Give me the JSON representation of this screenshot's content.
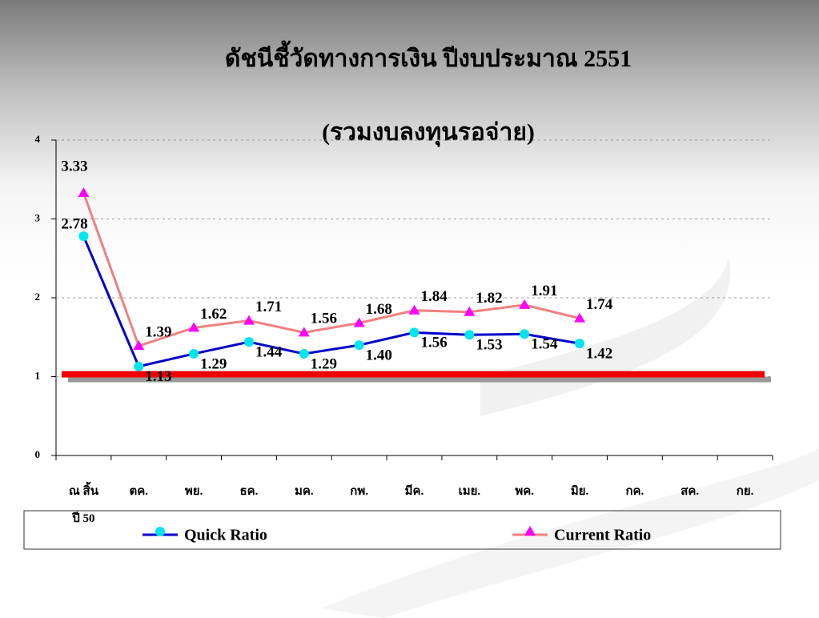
{
  "chart_data": {
    "type": "line",
    "title": "ดัชนีชี้วัดทางการเงิน ปีงบประมาณ 2551",
    "subtitle": "(รวมงบลงทุนรอจ่าย)",
    "categories": [
      "ณ สิ้น\nปี 50",
      "ตค.",
      "พย.",
      "ธค.",
      "มค.",
      "กพ.",
      "มีค.",
      "เมย.",
      "พค.",
      "มิย.",
      "กค.",
      "สค.",
      "กย."
    ],
    "series": [
      {
        "name": "Quick Ratio",
        "color": "#0000cc",
        "marker_color": "#00e5ee",
        "marker": "circle",
        "values": [
          2.78,
          1.13,
          1.29,
          1.44,
          1.29,
          1.4,
          1.56,
          1.53,
          1.54,
          1.42,
          null,
          null,
          null
        ],
        "value_labels": [
          "2.78",
          "1.13",
          "1.29",
          "1.44",
          "1.29",
          "1.40",
          "1.56",
          "1.53",
          "1.54",
          "1.42",
          null,
          null,
          null
        ]
      },
      {
        "name": "Current Ratio",
        "color": "#f08080",
        "marker_color": "#ff00ff",
        "marker": "triangle",
        "values": [
          3.33,
          1.39,
          1.62,
          1.71,
          1.56,
          1.68,
          1.84,
          1.82,
          1.91,
          1.74,
          null,
          null,
          null
        ],
        "value_labels": [
          "3.33",
          "1.39",
          "1.62",
          "1.71",
          "1.56",
          "1.68",
          "1.84",
          "1.82",
          "1.91",
          "1.74",
          null,
          null,
          null
        ]
      }
    ],
    "reference_line": 1.03,
    "ylim": [
      0,
      4
    ],
    "yticks": [
      0,
      1,
      2,
      3,
      4
    ],
    "grid": true
  }
}
